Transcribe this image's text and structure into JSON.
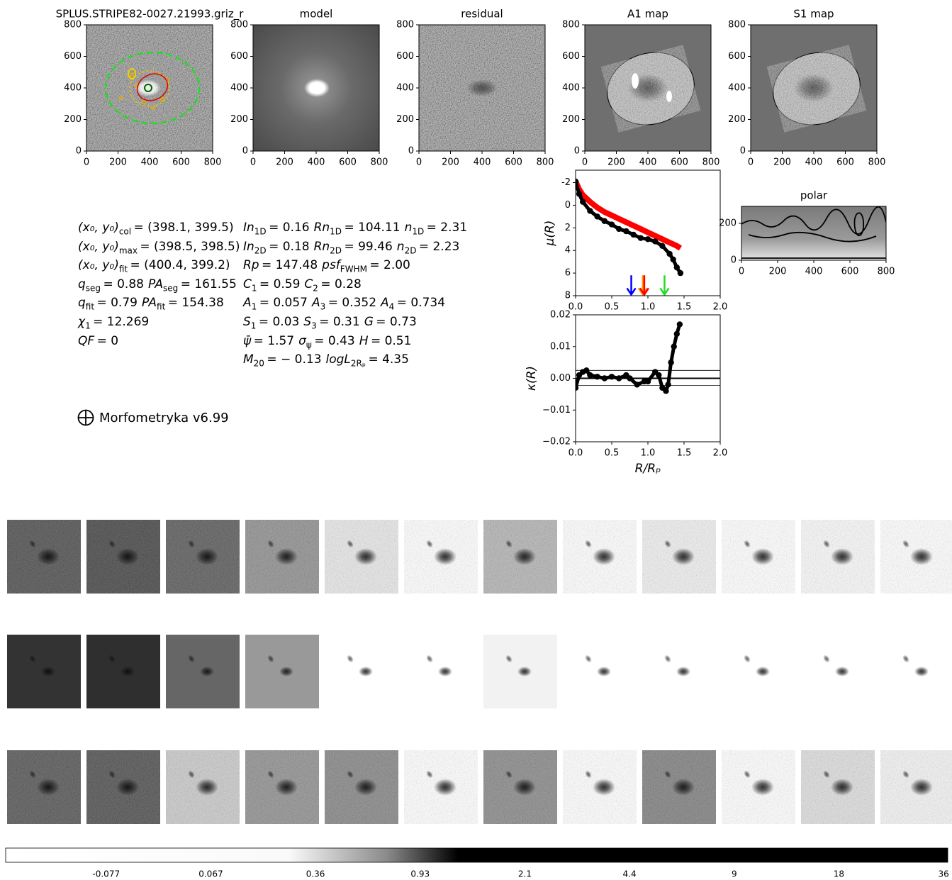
{
  "chart_data": [
    {
      "type": "image",
      "title": "SPLUS.STRIPE82-0027.21993.griz_r",
      "xlim": [
        0,
        800
      ],
      "ylim": [
        0,
        800
      ],
      "xticks": [
        0,
        200,
        400,
        600,
        800
      ],
      "yticks": [
        0,
        200,
        400,
        600,
        800
      ]
    },
    {
      "type": "image",
      "title": "model",
      "xlim": [
        0,
        800
      ],
      "ylim": [
        0,
        800
      ],
      "xticks": [
        0,
        200,
        400,
        600,
        800
      ],
      "yticks": [
        0,
        200,
        400,
        600,
        800
      ]
    },
    {
      "type": "image",
      "title": "residual",
      "xlim": [
        0,
        800
      ],
      "ylim": [
        0,
        800
      ],
      "xticks": [
        0,
        200,
        400,
        600,
        800
      ],
      "yticks": [
        0,
        200,
        400,
        600,
        800
      ]
    },
    {
      "type": "image",
      "title": "A1 map",
      "xlim": [
        0,
        800
      ],
      "ylim": [
        0,
        800
      ],
      "xticks": [
        0,
        200,
        400,
        600,
        800
      ],
      "yticks": [
        0,
        200,
        400,
        600,
        800
      ]
    },
    {
      "type": "image",
      "title": "S1 map",
      "xlim": [
        0,
        800
      ],
      "ylim": [
        0,
        800
      ],
      "xticks": [
        0,
        200,
        400,
        600,
        800
      ],
      "yticks": [
        0,
        200,
        400,
        600,
        800
      ]
    },
    {
      "type": "line",
      "ylabel": "μ(R)",
      "xlim": [
        0,
        2
      ],
      "ylim": [
        8,
        -3.1
      ],
      "xticks": [
        {
          "value": 0,
          "label": "0.0"
        },
        {
          "value": 0.5,
          "label": "0.5"
        },
        {
          "value": 1,
          "label": "1.0"
        },
        {
          "value": 1.5,
          "label": "1.5"
        },
        {
          "value": 2,
          "label": "2.0"
        }
      ],
      "yticks": [
        -2,
        0,
        2,
        4,
        6,
        8
      ],
      "x": [
        0,
        0.05,
        0.1,
        0.2,
        0.3,
        0.4,
        0.5,
        0.6,
        0.7,
        0.8,
        0.9,
        1.0,
        1.1,
        1.2,
        1.3,
        1.35,
        1.4,
        1.45
      ],
      "series": [
        {
          "color": "#ff0000",
          "mode": "line",
          "values": [
            -2.1,
            -1.4,
            -0.9,
            -0.3,
            0.2,
            0.6,
            0.9,
            1.2,
            1.5,
            1.8,
            2.1,
            2.4,
            2.7,
            3.0,
            3.3,
            3.45,
            3.6,
            3.8
          ]
        },
        {
          "color": "#000000",
          "mode": "markers",
          "values": [
            -2.1,
            -1.0,
            -0.3,
            0.5,
            1.0,
            1.4,
            1.7,
            2.1,
            2.3,
            2.6,
            2.9,
            3.0,
            3.2,
            3.6,
            4.3,
            4.8,
            5.5,
            6.0
          ]
        }
      ],
      "arrows": [
        {
          "x": 0.77,
          "color": "#0000ff"
        },
        {
          "x": 0.93,
          "color": "#ff9900"
        },
        {
          "x": 0.95,
          "color": "#ff0000"
        },
        {
          "x": 1.23,
          "color": "#22dd22"
        }
      ]
    },
    {
      "type": "line",
      "ylabel": "κ(R)",
      "xlabel": "R/Rₚ",
      "xlim": [
        0,
        2
      ],
      "ylim": [
        -0.02,
        0.02
      ],
      "xticks": [
        {
          "value": 0,
          "label": "0.0"
        },
        {
          "value": 0.5,
          "label": "0.5"
        },
        {
          "value": 1,
          "label": "1.0"
        },
        {
          "value": 1.5,
          "label": "1.5"
        },
        {
          "value": 2,
          "label": "2.0"
        }
      ],
      "yticks": [
        {
          "value": -0.02,
          "label": "−0.02"
        },
        {
          "value": -0.01,
          "label": "−0.01"
        },
        {
          "value": 0,
          "label": "0.00"
        },
        0.01,
        0.02
      ],
      "x": [
        0,
        0.05,
        0.1,
        0.15,
        0.2,
        0.3,
        0.4,
        0.5,
        0.6,
        0.7,
        0.75,
        0.85,
        0.95,
        1.0,
        1.1,
        1.15,
        1.2,
        1.25,
        1.28,
        1.32,
        1.36,
        1.4,
        1.44
      ],
      "series": [
        {
          "color": "#000000",
          "mode": "markers",
          "values": [
            -0.003,
            0.001,
            0.002,
            0.0025,
            0.001,
            0.0005,
            0.0,
            0.0005,
            0.0,
            0.001,
            0.0,
            -0.002,
            -0.001,
            -0.001,
            0.002,
            0.001,
            -0.003,
            -0.004,
            -0.002,
            0.005,
            0.01,
            0.014,
            0.017
          ]
        }
      ],
      "hlines": [
        0,
        0.0025,
        -0.0022
      ]
    },
    {
      "type": "image",
      "title": "polar",
      "xlim": [
        0,
        800
      ],
      "ylim": [
        0,
        292
      ],
      "xticks": [
        0,
        200,
        400,
        600,
        800
      ],
      "yticks": [
        0,
        200
      ]
    },
    {
      "type": "colorbar",
      "ticks": [
        -0.077,
        0.067,
        0.36,
        0.93,
        2.1,
        4.4,
        9,
        18,
        36
      ]
    }
  ],
  "parameters": {
    "left": [
      [
        {
          "sym": "(x₀, y₀)",
          "sub": "col",
          "val": "= (398.1,  399.5)"
        }
      ],
      [
        {
          "sym": "(x₀, y₀)",
          "sub": "max",
          "val": "= (398.5,  398.5)"
        }
      ],
      [
        {
          "sym": "(x₀, y₀)",
          "sub": "fit",
          "val": "= (400.4, 399.2)"
        }
      ],
      [
        {
          "sym": "q",
          "sub": "seg",
          "val": "= 0.88"
        },
        {
          "sym": "PA",
          "sub": "seg",
          "val": "= 161.55"
        }
      ],
      [
        {
          "sym": "q",
          "sub": "fit",
          "val": "= 0.79"
        },
        {
          "sym": "PA",
          "sub": "fit",
          "val": "= 154.38"
        }
      ],
      [
        {
          "sym": "χ",
          "sub": "1",
          "val": "= 12.269"
        }
      ],
      [
        {
          "sym": "QF",
          "val": "= 0"
        }
      ]
    ],
    "right": [
      [
        {
          "sym": "In",
          "sub": "1D",
          "val": "= 0.16"
        },
        {
          "sym": "Rn",
          "sub": "1D",
          "val": "= 104.11"
        },
        {
          "sym": "n",
          "sub": "1D",
          "val": "= 2.31"
        }
      ],
      [
        {
          "sym": "In",
          "sub": "2D",
          "val": "= 0.18"
        },
        {
          "sym": "Rn",
          "sub": "2D",
          "val": "= 99.46"
        },
        {
          "sym": "n",
          "sub": "2D",
          "val": "= 2.23"
        }
      ],
      [
        {
          "sym": "Rp",
          "val": "= 147.48"
        },
        {
          "sym": "psf",
          "sub": "FWHM",
          "val": "= 2.00"
        }
      ],
      [
        {
          "sym": "C",
          "sub": "1",
          "val": "= 0.59"
        },
        {
          "sym": "C",
          "sub": "2",
          "val": "= 0.28"
        }
      ],
      [
        {
          "sym": "A",
          "sub": "1",
          "val": "= 0.057"
        },
        {
          "sym": "A",
          "sub": "3",
          "val": "= 0.352"
        },
        {
          "sym": "A",
          "sub": "4",
          "val": "= 0.734"
        }
      ],
      [
        {
          "sym": "S",
          "sub": "1",
          "val": "= 0.03"
        },
        {
          "sym": "S",
          "sub": "3",
          "val": "= 0.31"
        },
        {
          "sym": "G",
          "val": "= 0.73"
        }
      ],
      [
        {
          "sym": "ψ̄",
          "val": "= 1.57"
        },
        {
          "sym": "σ",
          "sub": "ψ",
          "val": "= 0.43"
        },
        {
          "sym": "H",
          "val": "= 0.51"
        }
      ],
      [
        {
          "sym": "M",
          "sub": "20",
          "val": "= − 0.13"
        },
        {
          "sym": "logL",
          "sub": "2Rₚ",
          "val": "= 4.35"
        }
      ]
    ]
  },
  "footer": "Morfometryka v6.99"
}
